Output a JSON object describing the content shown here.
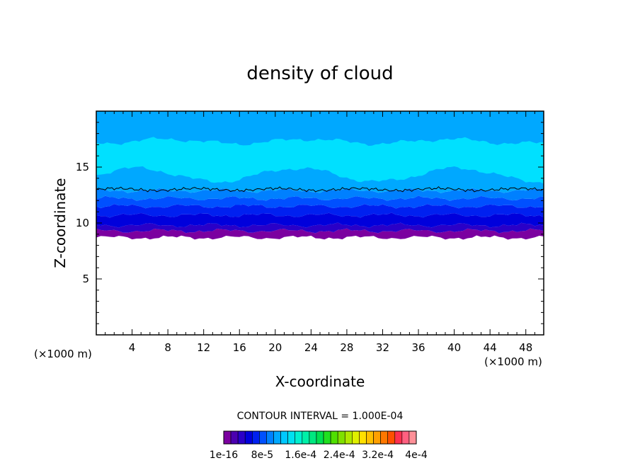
{
  "chart_data": {
    "type": "contour",
    "title": "density of cloud",
    "xlabel": "X-coordinate",
    "ylabel": "Z-coordinate",
    "x_unit": "(×1000 m)",
    "y_unit": "(×1000 m)",
    "xlim": [
      0,
      50
    ],
    "ylim": [
      0,
      20
    ],
    "x_ticks": [
      4,
      8,
      12,
      16,
      20,
      24,
      28,
      32,
      36,
      40,
      44,
      48
    ],
    "y_ticks": [
      5,
      10,
      15
    ],
    "contour_interval_text": "CONTOUR INTERVAL = 1.000E-04",
    "colorbar": {
      "tick_labels": [
        "1e-16",
        "8e-5",
        "1.6e-4",
        "2.4e-4",
        "3.2e-4",
        "4e-4"
      ],
      "levels": 27,
      "colors": [
        "#7b00a0",
        "#4b00b0",
        "#2a00c8",
        "#0000dc",
        "#0020f0",
        "#0050ff",
        "#0080ff",
        "#00a8ff",
        "#00c8ff",
        "#00e0f0",
        "#00f0d0",
        "#00f0a8",
        "#00e880",
        "#00e050",
        "#20e020",
        "#50e000",
        "#80e000",
        "#b0e800",
        "#e0f000",
        "#ffe000",
        "#ffc000",
        "#ffa000",
        "#ff7800",
        "#ff5000",
        "#ff3050",
        "#ff6080",
        "#ff9098"
      ]
    },
    "bands": [
      {
        "z_bottom": 8.7,
        "z_top": 9.3,
        "color": "#7b00a0"
      },
      {
        "z_bottom": 9.3,
        "z_top": 9.8,
        "color": "#2a00c8"
      },
      {
        "z_bottom": 9.8,
        "z_top": 10.7,
        "color": "#0000dc"
      },
      {
        "z_bottom": 10.7,
        "z_top": 11.5,
        "color": "#0020f0"
      },
      {
        "z_bottom": 11.5,
        "z_top": 12.2,
        "color": "#0050ff"
      },
      {
        "z_bottom": 12.2,
        "z_top": 12.9,
        "color": "#0080ff"
      },
      {
        "z_bottom": 12.9,
        "z_top": 20,
        "color": "#00a8ff"
      }
    ],
    "bright_layer": {
      "z_bottom": 14.3,
      "z_top": 17.3,
      "color": "#00e0ff"
    },
    "contour_line_z": 13.0
  }
}
